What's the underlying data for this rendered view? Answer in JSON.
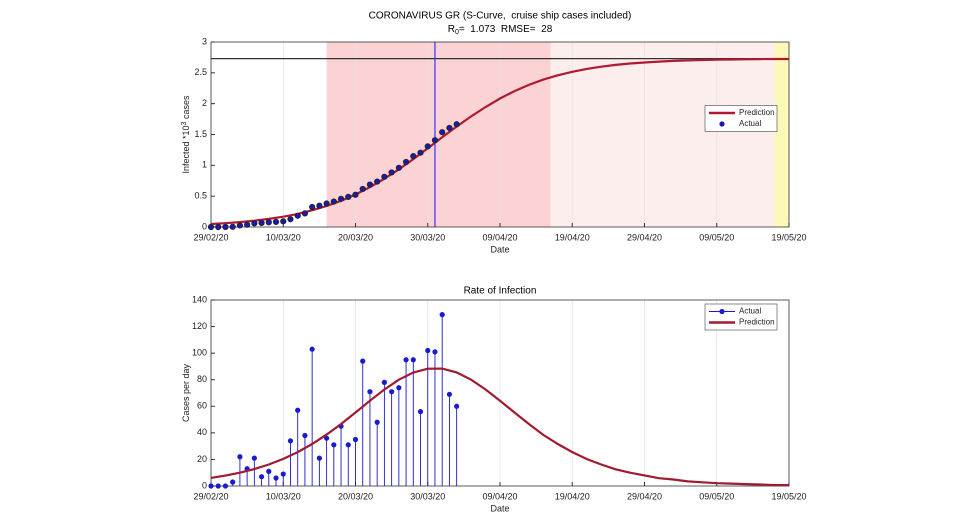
{
  "chart_data": [
    {
      "type": "line",
      "title": "CORONAVIRUS GR (S-Curve,  cruise ship cases included)",
      "subtitle": [
        "R",
        "0",
        "=  1.073  RMSE=  28"
      ],
      "xlabel": "Date",
      "ylabel": [
        "Infected *10",
        "3",
        " cases"
      ],
      "xlim": [
        "29/02/20",
        "19/05/20"
      ],
      "xticks": [
        "29/02/20",
        "10/03/20",
        "20/03/20",
        "30/03/20",
        "09/04/20",
        "19/04/20",
        "29/04/20",
        "09/05/20",
        "19/05/20"
      ],
      "ylim": [
        0,
        3
      ],
      "yticks": [
        0,
        0.5,
        1,
        1.5,
        2,
        2.5,
        3
      ],
      "xgrid": true,
      "legend": "east",
      "shaded_regions": [
        {
          "from": "16/03/20",
          "to": "16/04/20",
          "color": "#fcd3d5"
        },
        {
          "from": "16/04/20",
          "to": "17/05/20",
          "color": "#fdeeee"
        },
        {
          "from": "17/05/20",
          "to": "19/05/20",
          "color": "#fbf9b8"
        }
      ],
      "hline": 2.73,
      "hline_color": "#333333",
      "vline": "31/03/20",
      "vline_color": "#3333ff",
      "series": [
        {
          "name": "Prediction",
          "mode": "line",
          "color": "#b01a30",
          "x": [
            "29/02/20",
            "02/03/20",
            "04/03/20",
            "06/03/20",
            "08/03/20",
            "10/03/20",
            "12/03/20",
            "14/03/20",
            "16/03/20",
            "18/03/20",
            "20/03/20",
            "22/03/20",
            "24/03/20",
            "26/03/20",
            "28/03/20",
            "30/03/20",
            "01/04/20",
            "03/04/20",
            "05/04/20",
            "07/04/20",
            "09/04/20",
            "11/04/20",
            "13/04/20",
            "15/04/20",
            "17/04/20",
            "19/04/20",
            "21/04/20",
            "23/04/20",
            "25/04/20",
            "27/04/20",
            "29/04/20",
            "01/05/20",
            "03/05/20",
            "05/05/20",
            "07/05/20",
            "09/05/20",
            "11/05/20",
            "13/05/20",
            "15/05/20",
            "17/05/20",
            "19/05/20"
          ],
          "values": [
            0.048,
            0.061,
            0.079,
            0.102,
            0.131,
            0.167,
            0.213,
            0.27,
            0.34,
            0.425,
            0.527,
            0.647,
            0.784,
            0.935,
            1.101,
            1.276,
            1.454,
            1.628,
            1.794,
            1.946,
            2.084,
            2.203,
            2.304,
            2.391,
            2.46,
            2.517,
            2.563,
            2.599,
            2.628,
            2.651,
            2.668,
            2.682,
            2.693,
            2.701,
            2.708,
            2.713,
            2.717,
            2.72,
            2.722,
            2.724,
            2.725
          ]
        },
        {
          "name": "Actual",
          "mode": "markers",
          "color": "#1a1ab0",
          "x": [
            "29/02/20",
            "01/03/20",
            "02/03/20",
            "03/03/20",
            "04/03/20",
            "05/03/20",
            "06/03/20",
            "07/03/20",
            "08/03/20",
            "09/03/20",
            "10/03/20",
            "11/03/20",
            "12/03/20",
            "13/03/20",
            "14/03/20",
            "15/03/20",
            "16/03/20",
            "17/03/20",
            "18/03/20",
            "19/03/20",
            "20/03/20",
            "21/03/20",
            "22/03/20",
            "23/03/20",
            "24/03/20",
            "25/03/20",
            "26/03/20",
            "27/03/20",
            "28/03/20",
            "29/03/20",
            "30/03/20",
            "31/03/20",
            "01/04/20",
            "02/04/20",
            "03/04/20"
          ],
          "values": [
            0,
            0,
            0,
            0.003,
            0.025,
            0.038,
            0.059,
            0.066,
            0.077,
            0.083,
            0.092,
            0.126,
            0.183,
            0.221,
            0.324,
            0.345,
            0.381,
            0.412,
            0.457,
            0.488,
            0.523,
            0.617,
            0.688,
            0.736,
            0.814,
            0.885,
            0.959,
            1.054,
            1.149,
            1.205,
            1.307,
            1.408,
            1.537,
            1.606,
            1.666
          ]
        }
      ]
    },
    {
      "type": "stem",
      "title": "Rate of Infection",
      "xlabel": "Date",
      "ylabel": [
        "Cases per day"
      ],
      "xlim": [
        "29/02/20",
        "19/05/20"
      ],
      "xticks": [
        "29/02/20",
        "10/03/20",
        "20/03/20",
        "30/03/20",
        "09/04/20",
        "19/04/20",
        "29/04/20",
        "09/05/20",
        "19/05/20"
      ],
      "ylim": [
        0,
        140
      ],
      "yticks": [
        0,
        20,
        40,
        60,
        80,
        100,
        120,
        140
      ],
      "xgrid": true,
      "legend": "northeast",
      "series": [
        {
          "name": "Actual",
          "mode": "stem",
          "color": "#1a1ad0",
          "x": [
            "29/02/20",
            "01/03/20",
            "02/03/20",
            "03/03/20",
            "04/03/20",
            "05/03/20",
            "06/03/20",
            "07/03/20",
            "08/03/20",
            "09/03/20",
            "10/03/20",
            "11/03/20",
            "12/03/20",
            "13/03/20",
            "14/03/20",
            "15/03/20",
            "16/03/20",
            "17/03/20",
            "18/03/20",
            "19/03/20",
            "20/03/20",
            "21/03/20",
            "22/03/20",
            "23/03/20",
            "24/03/20",
            "25/03/20",
            "26/03/20",
            "27/03/20",
            "28/03/20",
            "29/03/20",
            "30/03/20",
            "31/03/20",
            "01/04/20",
            "02/04/20",
            "03/04/20"
          ],
          "values": [
            0,
            0,
            0,
            3,
            22,
            13,
            21,
            7,
            11,
            6,
            9,
            34,
            57,
            38,
            103,
            21,
            36,
            31,
            45,
            31,
            35,
            94,
            71,
            48,
            78,
            71,
            74,
            95,
            95,
            56,
            102,
            101,
            129,
            69,
            60
          ]
        },
        {
          "name": "Prediction",
          "mode": "line",
          "color": "#a01a30",
          "x": [
            "29/02/20",
            "02/03/20",
            "04/03/20",
            "06/03/20",
            "08/03/20",
            "10/03/20",
            "12/03/20",
            "14/03/20",
            "16/03/20",
            "18/03/20",
            "20/03/20",
            "22/03/20",
            "24/03/20",
            "26/03/20",
            "28/03/20",
            "30/03/20",
            "01/04/20",
            "03/04/20",
            "05/04/20",
            "07/04/20",
            "09/04/20",
            "11/04/20",
            "13/04/20",
            "15/04/20",
            "17/04/20",
            "19/04/20",
            "21/04/20",
            "23/04/20",
            "25/04/20",
            "27/04/20",
            "29/04/20",
            "01/05/20",
            "03/05/20",
            "05/05/20",
            "07/05/20",
            "09/05/20",
            "11/05/20",
            "13/05/20",
            "15/05/20",
            "17/05/20",
            "19/05/20"
          ],
          "values": [
            6.1,
            7.8,
            10,
            12.7,
            16.2,
            20.4,
            25.5,
            31.6,
            38.7,
            46.7,
            55.3,
            64.2,
            72.6,
            80,
            85.4,
            88.3,
            88.4,
            85.5,
            80,
            72.6,
            64.2,
            55.3,
            46.7,
            38.5,
            31.6,
            25.5,
            20.3,
            16.2,
            12.6,
            10,
            8,
            5.9,
            4.9,
            3.5,
            2.8,
            2.1,
            1.8,
            1.4,
            1.1,
            0.7,
            0.7
          ]
        }
      ]
    }
  ]
}
